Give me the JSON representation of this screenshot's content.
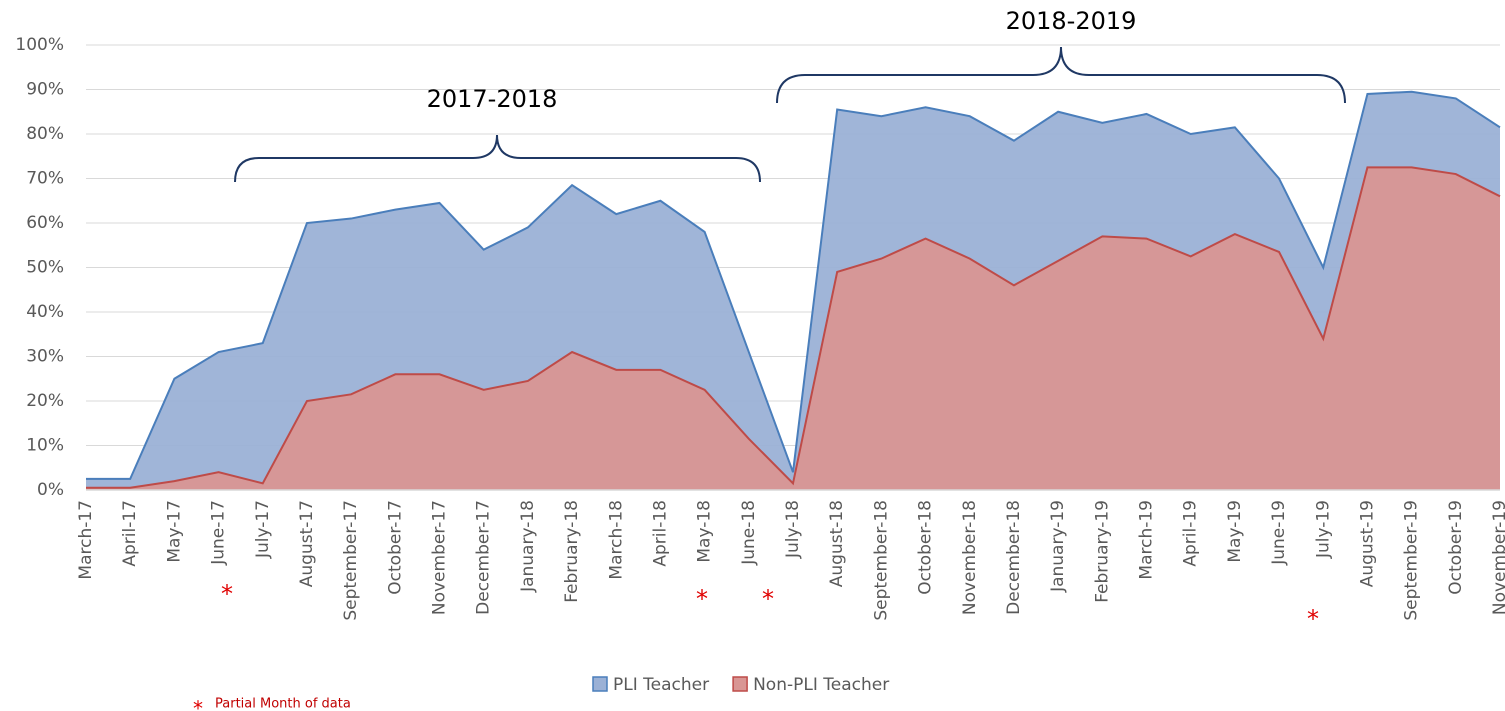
{
  "chart_data": {
    "type": "area",
    "categories": [
      "March-17",
      "April-17",
      "May-17",
      "June-17",
      "July-17",
      "August-17",
      "September-17",
      "October-17",
      "November-17",
      "December-17",
      "January-18",
      "February-18",
      "March-18",
      "April-18",
      "May-18",
      "June-18",
      "July-18",
      "August-18",
      "September-18",
      "October-18",
      "November-18",
      "December-18",
      "January-19",
      "February-19",
      "March-19",
      "April-19",
      "May-19",
      "June-19",
      "July-19",
      "August-19",
      "September-19",
      "October-19",
      "November-19"
    ],
    "series": [
      {
        "name": "PLI Teacher",
        "color": "#4a7ebb",
        "fill": "#9bb1d6",
        "values": [
          2.5,
          2.5,
          25,
          31,
          33,
          60,
          61,
          63,
          64.5,
          54,
          59,
          68.5,
          62,
          65,
          58,
          31,
          4,
          85.5,
          84,
          86,
          84,
          78.5,
          85,
          82.5,
          84.5,
          80,
          81.5,
          70,
          50,
          89,
          89.5,
          88,
          81.5
        ]
      },
      {
        "name": "Non-PLI Teacher",
        "color": "#be4b48",
        "fill": "#d99694",
        "values": [
          0.5,
          0.5,
          2,
          4,
          1.5,
          20,
          21.5,
          26,
          26,
          22.5,
          24.5,
          31,
          27,
          27,
          22.5,
          11.5,
          1.5,
          49,
          52,
          56.5,
          52,
          46,
          51.5,
          57,
          56.5,
          52.5,
          57.5,
          53.5,
          34,
          72.5,
          72.5,
          71,
          66
        ]
      }
    ],
    "ylim": [
      0,
      100
    ],
    "yticks": [
      {
        "value": 0,
        "label": "0%"
      },
      {
        "value": 10,
        "label": "10%"
      },
      {
        "value": 20,
        "label": "20%"
      },
      {
        "value": 30,
        "label": "30%"
      },
      {
        "value": 40,
        "label": "40%"
      },
      {
        "value": 50,
        "label": "50%"
      },
      {
        "value": 60,
        "label": "60%"
      },
      {
        "value": 70,
        "label": "70%"
      },
      {
        "value": 80,
        "label": "80%"
      },
      {
        "value": 90,
        "label": "90%"
      },
      {
        "value": 100,
        "label": "100%"
      }
    ],
    "grid": true,
    "annotations": [
      "2017-2018",
      "2018-2019"
    ],
    "partial_marker": "*",
    "partial_note": "Partial Month of data"
  }
}
